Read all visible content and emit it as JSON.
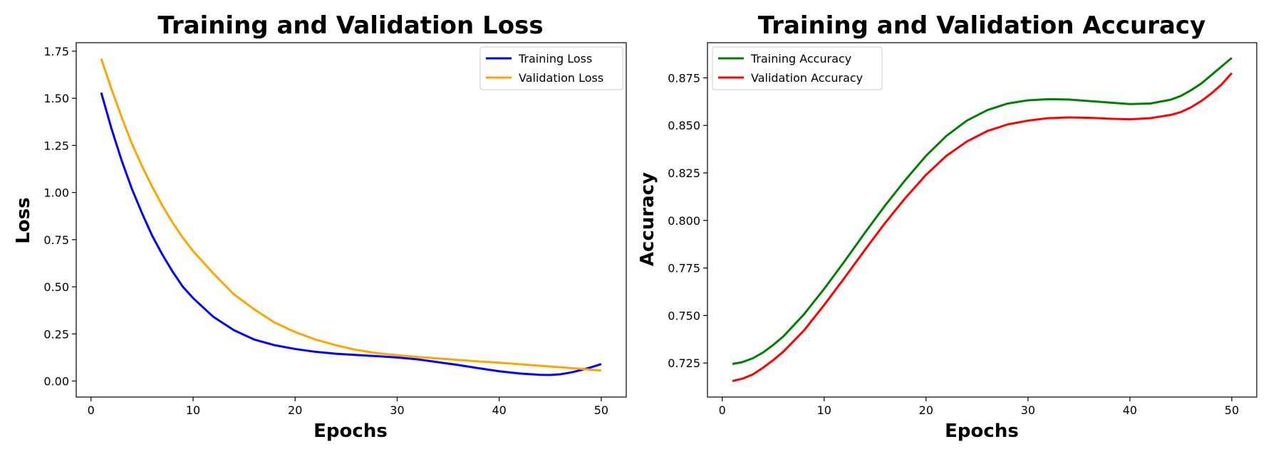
{
  "chart_data": [
    {
      "id": "loss",
      "type": "line",
      "title": "Training and Validation Loss",
      "xlabel": "Epochs",
      "ylabel": "Loss",
      "xlim": [
        -1.45,
        52.45
      ],
      "ylim": [
        -0.085,
        1.795
      ],
      "xticks": [
        0,
        10,
        20,
        30,
        40,
        50
      ],
      "xtick_labels": [
        "0",
        "10",
        "20",
        "30",
        "40",
        "50"
      ],
      "yticks": [
        0,
        0.25,
        0.5,
        0.75,
        1.0,
        1.25,
        1.5,
        1.75
      ],
      "ytick_labels": [
        "0.00",
        "0.25",
        "0.50",
        "0.75",
        "1.00",
        "1.25",
        "1.50",
        "1.75"
      ],
      "legend_position": "upper-right",
      "x": [
        1,
        2,
        3,
        4,
        5,
        6,
        7,
        8,
        9,
        10,
        12,
        14,
        16,
        18,
        20,
        22,
        24,
        26,
        28,
        30,
        32,
        34,
        36,
        38,
        40,
        42,
        44,
        45,
        46,
        47,
        48,
        49,
        50
      ],
      "series": [
        {
          "name": "Training Loss",
          "color": "#0000ff",
          "values": [
            1.53,
            1.34,
            1.17,
            1.02,
            0.89,
            0.77,
            0.67,
            0.58,
            0.5,
            0.44,
            0.34,
            0.27,
            0.22,
            0.19,
            0.17,
            0.155,
            0.145,
            0.138,
            0.132,
            0.125,
            0.115,
            0.1,
            0.085,
            0.068,
            0.052,
            0.04,
            0.033,
            0.032,
            0.036,
            0.045,
            0.058,
            0.073,
            0.09
          ]
        },
        {
          "name": "Validation Loss",
          "color": "#ffa500",
          "values": [
            1.71,
            1.55,
            1.4,
            1.26,
            1.14,
            1.03,
            0.93,
            0.84,
            0.76,
            0.69,
            0.57,
            0.46,
            0.38,
            0.31,
            0.26,
            0.22,
            0.19,
            0.165,
            0.148,
            0.137,
            0.128,
            0.12,
            0.112,
            0.104,
            0.097,
            0.089,
            0.081,
            0.077,
            0.073,
            0.069,
            0.065,
            0.06,
            0.055
          ]
        }
      ]
    },
    {
      "id": "accuracy",
      "type": "line",
      "title": "Training and Validation Accuracy",
      "xlabel": "Epochs",
      "ylabel": "Accuracy",
      "xlim": [
        -1.45,
        52.45
      ],
      "ylim": [
        0.7071,
        0.8935
      ],
      "xticks": [
        0,
        10,
        20,
        30,
        40,
        50
      ],
      "xtick_labels": [
        "0",
        "10",
        "20",
        "30",
        "40",
        "50"
      ],
      "yticks": [
        0.725,
        0.75,
        0.775,
        0.8,
        0.825,
        0.85,
        0.875
      ],
      "ytick_labels": [
        "0.725",
        "0.750",
        "0.775",
        "0.800",
        "0.825",
        "0.850",
        "0.875"
      ],
      "legend_position": "upper-left",
      "x": [
        1,
        2,
        3,
        4,
        5,
        6,
        8,
        10,
        12,
        14,
        16,
        18,
        20,
        22,
        24,
        26,
        28,
        30,
        32,
        34,
        36,
        38,
        40,
        42,
        44,
        45,
        46,
        47,
        48,
        49,
        50
      ],
      "series": [
        {
          "name": "Training Accuracy",
          "color": "#008000",
          "values": [
            0.7245,
            0.7255,
            0.7275,
            0.7305,
            0.7345,
            0.739,
            0.7505,
            0.764,
            0.7785,
            0.7935,
            0.808,
            0.8215,
            0.834,
            0.8445,
            0.8525,
            0.858,
            0.8615,
            0.8632,
            0.8638,
            0.8636,
            0.8628,
            0.862,
            0.8612,
            0.8615,
            0.8635,
            0.8655,
            0.8685,
            0.872,
            0.8765,
            0.881,
            0.8855
          ]
        },
        {
          "name": "Validation Accuracy",
          "color": "#ff0000",
          "values": [
            0.7155,
            0.7168,
            0.719,
            0.7225,
            0.7265,
            0.731,
            0.742,
            0.7555,
            0.7698,
            0.7845,
            0.7988,
            0.812,
            0.824,
            0.834,
            0.8415,
            0.847,
            0.8505,
            0.8525,
            0.8538,
            0.8542,
            0.854,
            0.8535,
            0.8532,
            0.8538,
            0.8555,
            0.857,
            0.8595,
            0.8628,
            0.8668,
            0.8715,
            0.8775
          ]
        }
      ]
    }
  ]
}
